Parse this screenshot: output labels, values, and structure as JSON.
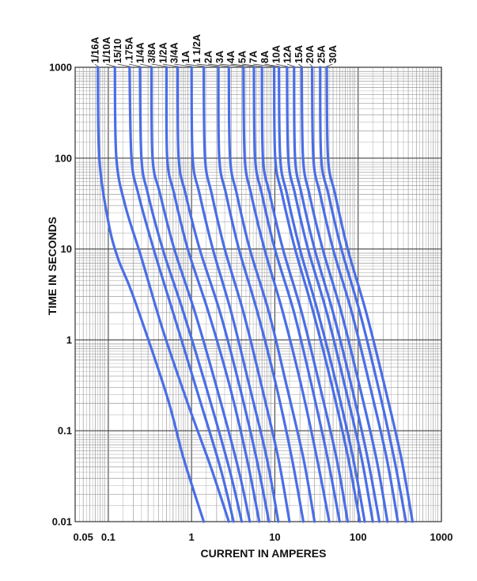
{
  "chart_data": {
    "type": "line",
    "title": "",
    "xlabel": "CURRENT IN AMPERES",
    "ylabel": "TIME IN SECONDS",
    "x_scale": "log",
    "y_scale": "log",
    "xlim": [
      0.04,
      1000
    ],
    "ylim": [
      0.01,
      1000
    ],
    "x_ticks": [
      "0.05",
      "0.1",
      "1",
      "10",
      "100",
      "1000"
    ],
    "x_tick_values": [
      0.05,
      0.1,
      1,
      10,
      100,
      1000
    ],
    "y_ticks": [
      "1000",
      "100",
      "10",
      "1",
      "0.1",
      "0.01"
    ],
    "y_tick_values": [
      1000,
      100,
      10,
      1,
      0.1,
      0.01
    ],
    "grid": true,
    "legend": "labels along top of curves",
    "series_color": "#4a6ee6",
    "series": [
      {
        "name": "1/16A",
        "points": [
          [
            0.075,
            1000
          ],
          [
            0.078,
            100
          ],
          [
            0.1,
            20
          ],
          [
            0.13,
            8
          ],
          [
            0.2,
            3
          ],
          [
            0.5,
            0.25
          ],
          [
            0.8,
            0.05
          ],
          [
            1.4,
            0.01
          ]
        ]
      },
      {
        "name": "1/10A",
        "points": [
          [
            0.12,
            1000
          ],
          [
            0.125,
            100
          ],
          [
            0.16,
            30
          ],
          [
            0.25,
            8
          ],
          [
            0.45,
            1.3
          ],
          [
            0.9,
            0.2
          ],
          [
            1.7,
            0.04
          ],
          [
            2.8,
            0.01
          ]
        ]
      },
      {
        "name": "15/10",
        "points": [
          [
            0.18,
            1000
          ],
          [
            0.19,
            100
          ],
          [
            0.23,
            40
          ],
          [
            0.35,
            10
          ],
          [
            0.6,
            2
          ],
          [
            1.2,
            0.25
          ],
          [
            2.2,
            0.04
          ],
          [
            3.2,
            0.01
          ]
        ]
      },
      {
        "name": ".175A",
        "points": [
          [
            0.24,
            1000
          ],
          [
            0.25,
            100
          ],
          [
            0.3,
            40
          ],
          [
            0.45,
            10
          ],
          [
            0.8,
            2
          ],
          [
            1.5,
            0.3
          ],
          [
            2.8,
            0.04
          ],
          [
            4,
            0.01
          ]
        ]
      },
      {
        "name": "1/4A",
        "points": [
          [
            0.33,
            1000
          ],
          [
            0.34,
            100
          ],
          [
            0.42,
            40
          ],
          [
            0.62,
            10
          ],
          [
            1.1,
            2
          ],
          [
            2,
            0.3
          ],
          [
            3.6,
            0.04
          ],
          [
            5,
            0.01
          ]
        ]
      },
      {
        "name": "3/8A",
        "points": [
          [
            0.5,
            1000
          ],
          [
            0.51,
            100
          ],
          [
            0.62,
            40
          ],
          [
            0.9,
            10
          ],
          [
            1.6,
            2
          ],
          [
            2.9,
            0.3
          ],
          [
            4.6,
            0.05
          ],
          [
            6.5,
            0.01
          ]
        ]
      },
      {
        "name": "1/2A",
        "points": [
          [
            0.68,
            1000
          ],
          [
            0.7,
            100
          ],
          [
            0.85,
            40
          ],
          [
            1.25,
            10
          ],
          [
            2.2,
            2
          ],
          [
            3.8,
            0.3
          ],
          [
            6,
            0.05
          ],
          [
            8.5,
            0.01
          ]
        ]
      },
      {
        "name": "3/4A",
        "points": [
          [
            1,
            1000
          ],
          [
            1.03,
            100
          ],
          [
            1.25,
            40
          ],
          [
            1.8,
            10
          ],
          [
            3,
            2
          ],
          [
            5,
            0.3
          ],
          [
            8,
            0.05
          ],
          [
            11,
            0.01
          ]
        ]
      },
      {
        "name": "1A",
        "points": [
          [
            1.4,
            1000
          ],
          [
            1.45,
            100
          ],
          [
            1.75,
            40
          ],
          [
            2.5,
            10
          ],
          [
            4.2,
            2
          ],
          [
            7,
            0.3
          ],
          [
            11,
            0.05
          ],
          [
            15,
            0.01
          ]
        ]
      },
      {
        "name": "1 1/2A",
        "points": [
          [
            2.1,
            1000
          ],
          [
            2.15,
            100
          ],
          [
            2.6,
            40
          ],
          [
            3.7,
            10
          ],
          [
            6.2,
            2
          ],
          [
            10.5,
            0.3
          ],
          [
            16,
            0.05
          ],
          [
            22,
            0.01
          ]
        ]
      },
      {
        "name": "2A",
        "points": [
          [
            2.8,
            1000
          ],
          [
            2.9,
            100
          ],
          [
            3.5,
            40
          ],
          [
            5,
            10
          ],
          [
            8.5,
            2
          ],
          [
            14,
            0.3
          ],
          [
            22,
            0.05
          ],
          [
            30,
            0.01
          ]
        ]
      },
      {
        "name": "3A",
        "points": [
          [
            4.2,
            1000
          ],
          [
            4.35,
            100
          ],
          [
            5.2,
            40
          ],
          [
            7.5,
            10
          ],
          [
            12.5,
            2
          ],
          [
            21,
            0.3
          ],
          [
            32,
            0.05
          ],
          [
            45,
            0.01
          ]
        ]
      },
      {
        "name": "4A",
        "points": [
          [
            5.6,
            1000
          ],
          [
            5.8,
            100
          ],
          [
            7,
            40
          ],
          [
            10,
            10
          ],
          [
            17,
            2
          ],
          [
            28,
            0.3
          ],
          [
            43,
            0.05
          ],
          [
            60,
            0.01
          ]
        ]
      },
      {
        "name": "5A",
        "points": [
          [
            7,
            1000
          ],
          [
            7.2,
            100
          ],
          [
            8.7,
            40
          ],
          [
            12.5,
            10
          ],
          [
            21,
            2
          ],
          [
            35,
            0.3
          ],
          [
            55,
            0.05
          ],
          [
            75,
            0.01
          ]
        ]
      },
      {
        "name": "7A",
        "points": [
          [
            9.8,
            1000
          ],
          [
            10.1,
            100
          ],
          [
            12.2,
            40
          ],
          [
            17.5,
            10
          ],
          [
            29,
            2
          ],
          [
            49,
            0.3
          ],
          [
            76,
            0.05
          ],
          [
            105,
            0.01
          ]
        ]
      },
      {
        "name": "8A",
        "points": [
          [
            11.2,
            1000
          ],
          [
            11.6,
            100
          ],
          [
            14,
            40
          ],
          [
            20,
            10
          ],
          [
            33,
            2
          ],
          [
            56,
            0.3
          ],
          [
            87,
            0.05
          ],
          [
            120,
            0.01
          ]
        ]
      },
      {
        "name": "10A",
        "points": [
          [
            14,
            1000
          ],
          [
            14.5,
            100
          ],
          [
            17.5,
            40
          ],
          [
            25,
            10
          ],
          [
            42,
            2
          ],
          [
            70,
            0.3
          ],
          [
            110,
            0.05
          ],
          [
            150,
            0.01
          ]
        ]
      },
      {
        "name": "12A",
        "points": [
          [
            17,
            1000
          ],
          [
            17.5,
            100
          ],
          [
            21,
            40
          ],
          [
            30,
            10
          ],
          [
            50,
            2
          ],
          [
            84,
            0.3
          ],
          [
            130,
            0.05
          ],
          [
            180,
            0.01
          ]
        ]
      },
      {
        "name": "15A",
        "points": [
          [
            21,
            1000
          ],
          [
            21.8,
            100
          ],
          [
            26,
            40
          ],
          [
            37.5,
            10
          ],
          [
            63,
            2
          ],
          [
            105,
            0.3
          ],
          [
            165,
            0.05
          ],
          [
            225,
            0.01
          ]
        ]
      },
      {
        "name": "20A",
        "points": [
          [
            28,
            1000
          ],
          [
            29,
            100
          ],
          [
            35,
            40
          ],
          [
            50,
            10
          ],
          [
            84,
            2
          ],
          [
            140,
            0.3
          ],
          [
            220,
            0.05
          ],
          [
            300,
            0.01
          ]
        ]
      },
      {
        "name": "25A",
        "points": [
          [
            35,
            1000
          ],
          [
            36,
            100
          ],
          [
            44,
            40
          ],
          [
            63,
            10
          ],
          [
            105,
            2
          ],
          [
            175,
            0.3
          ],
          [
            270,
            0.05
          ],
          [
            375,
            0.01
          ]
        ]
      },
      {
        "name": "30A",
        "points": [
          [
            42,
            1000
          ],
          [
            43.5,
            100
          ],
          [
            53,
            40
          ],
          [
            75,
            10
          ],
          [
            125,
            2
          ],
          [
            210,
            0.3
          ],
          [
            330,
            0.05
          ],
          [
            450,
            0.01
          ]
        ]
      }
    ]
  }
}
